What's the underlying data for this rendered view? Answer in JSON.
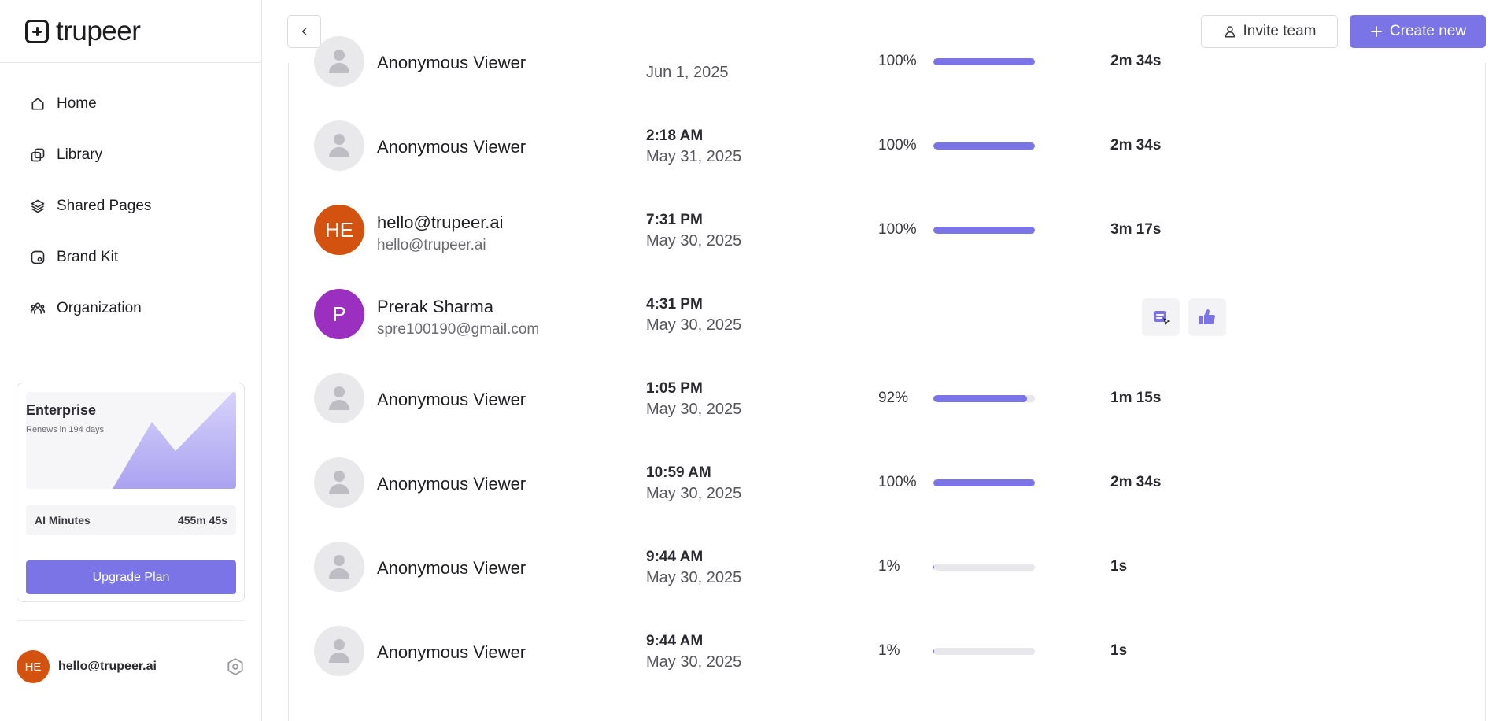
{
  "brand": {
    "name": "trupeer"
  },
  "nav": [
    {
      "label": "Home",
      "icon": "home-icon"
    },
    {
      "label": "Library",
      "icon": "library-icon"
    },
    {
      "label": "Shared Pages",
      "icon": "shared-pages-icon"
    },
    {
      "label": "Brand Kit",
      "icon": "brand-kit-icon"
    },
    {
      "label": "Organization",
      "icon": "organization-icon"
    }
  ],
  "plan": {
    "title": "Enterprise",
    "renews": "Renews in 194 days",
    "ai_minutes_label": "AI Minutes",
    "ai_minutes_value": "455m 45s",
    "upgrade_label": "Upgrade Plan"
  },
  "user": {
    "initials": "HE",
    "email": "hello@trupeer.ai"
  },
  "header": {
    "invite_label": "Invite team",
    "create_label": "Create new"
  },
  "colors": {
    "accent": "#7a74e6",
    "avatar_orange": "#d4520f",
    "avatar_purple": "#9b2fc0"
  },
  "viewers": [
    {
      "name": "Anonymous Viewer",
      "email": "",
      "avatar": "anon",
      "time": "",
      "date": "Jun 1, 2025",
      "percent": "100%",
      "progress": 100,
      "duration": "2m 34s"
    },
    {
      "name": "Anonymous Viewer",
      "email": "",
      "avatar": "anon",
      "time": "2:18 AM",
      "date": "May 31, 2025",
      "percent": "100%",
      "progress": 100,
      "duration": "2m 34s"
    },
    {
      "name": "hello@trupeer.ai",
      "email": "hello@trupeer.ai",
      "avatar": "HE",
      "time": "7:31 PM",
      "date": "May 30, 2025",
      "percent": "100%",
      "progress": 100,
      "duration": "3m 17s"
    },
    {
      "name": "Prerak Sharma",
      "email": "spre100190@gmail.com",
      "avatar": "P",
      "time": "4:31 PM",
      "date": "May 30, 2025",
      "percent": "",
      "progress": null,
      "duration": ""
    },
    {
      "name": "Anonymous Viewer",
      "email": "",
      "avatar": "anon",
      "time": "1:05 PM",
      "date": "May 30, 2025",
      "percent": "92%",
      "progress": 92,
      "duration": "1m 15s"
    },
    {
      "name": "Anonymous Viewer",
      "email": "",
      "avatar": "anon",
      "time": "10:59 AM",
      "date": "May 30, 2025",
      "percent": "100%",
      "progress": 100,
      "duration": "2m 34s"
    },
    {
      "name": "Anonymous Viewer",
      "email": "",
      "avatar": "anon",
      "time": "9:44 AM",
      "date": "May 30, 2025",
      "percent": "1%",
      "progress": 1,
      "duration": "1s"
    },
    {
      "name": "Anonymous Viewer",
      "email": "",
      "avatar": "anon",
      "time": "9:44 AM",
      "date": "May 30, 2025",
      "percent": "1%",
      "progress": 1,
      "duration": "1s"
    }
  ]
}
